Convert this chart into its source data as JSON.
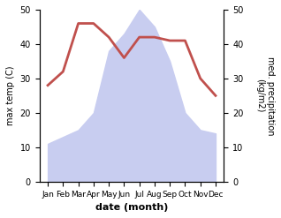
{
  "months": [
    "Jan",
    "Feb",
    "Mar",
    "Apr",
    "May",
    "Jun",
    "Jul",
    "Aug",
    "Sep",
    "Oct",
    "Nov",
    "Dec"
  ],
  "temperature": [
    28,
    32,
    46,
    46,
    42,
    36,
    42,
    42,
    41,
    41,
    30,
    25
  ],
  "precipitation": [
    11,
    13,
    15,
    20,
    38,
    43,
    50,
    45,
    35,
    20,
    15,
    14
  ],
  "temp_color": "#c0504d",
  "precip_fill_color": "#c8cdf0",
  "ylabel_left": "max temp (C)",
  "ylabel_right": "med. precipitation\n(kg/m2)",
  "xlabel": "date (month)",
  "ylim_left": [
    0,
    50
  ],
  "ylim_right": [
    0,
    50
  ],
  "yticks_left": [
    0,
    10,
    20,
    30,
    40,
    50
  ],
  "yticks_right": [
    0,
    10,
    20,
    30,
    40,
    50
  ],
  "background_color": "#ffffff",
  "line_width": 2.0,
  "left_axis_color": "#000000",
  "right_axis_color": "#000000"
}
